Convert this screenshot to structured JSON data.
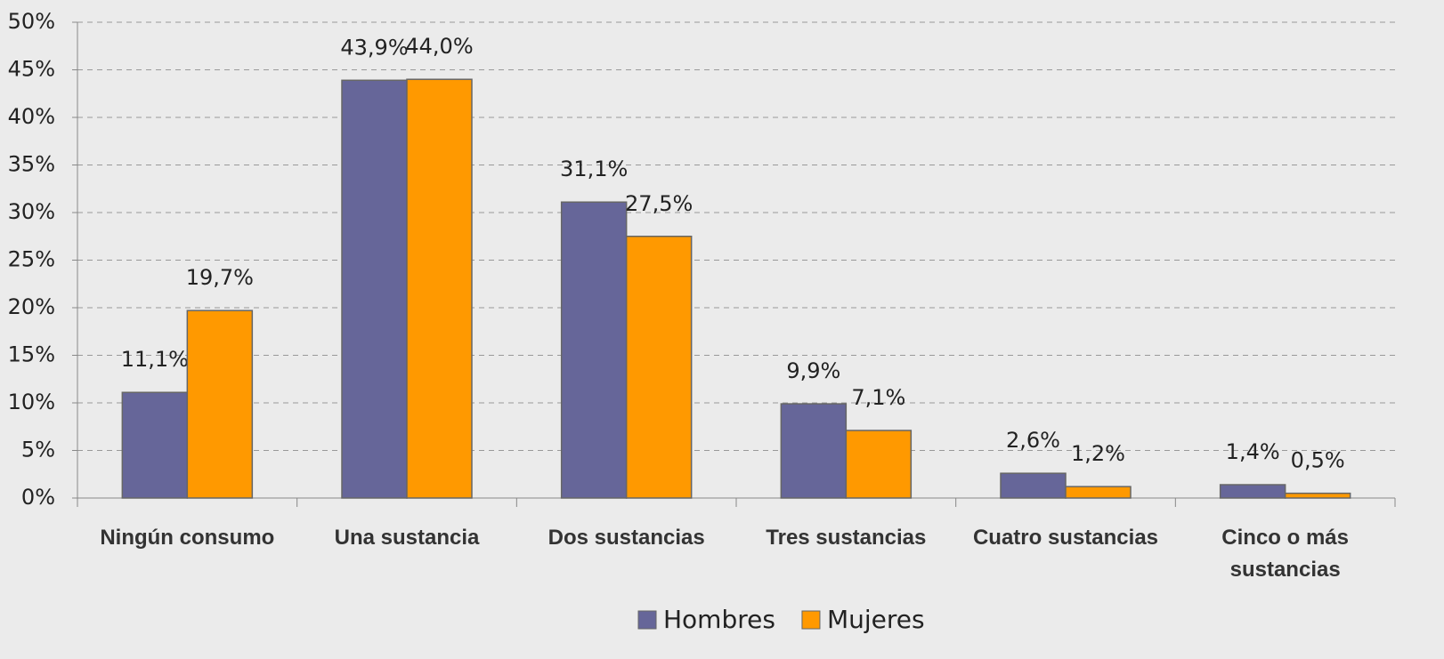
{
  "chart_data": {
    "type": "bar",
    "categories": [
      "Ningún consumo",
      "Una sustancia",
      "Dos sustancias",
      "Tres sustancias",
      "Cuatro sustancias",
      "Cinco o más sustancias"
    ],
    "series": [
      {
        "name": "Hombres",
        "color": "#666699",
        "values": [
          11.1,
          43.9,
          31.1,
          9.9,
          2.6,
          1.4
        ],
        "value_labels": [
          "11,1%",
          "43,9%",
          "31,1%",
          "9,9%",
          "2,6%",
          "1,4%"
        ]
      },
      {
        "name": "Mujeres",
        "color": "#ff9900",
        "values": [
          19.7,
          44.0,
          27.5,
          7.1,
          1.2,
          0.5
        ],
        "value_labels": [
          "19,7%",
          "44,0%",
          "27,5%",
          "7,1%",
          "1,2%",
          "0,5%"
        ]
      }
    ],
    "ylim": [
      0,
      50
    ],
    "yticks": [
      {
        "value": 0,
        "label": "0%"
      },
      {
        "value": 5,
        "label": "5%"
      },
      {
        "value": 10,
        "label": "10%"
      },
      {
        "value": 15,
        "label": "15%"
      },
      {
        "value": 20,
        "label": "20%"
      },
      {
        "value": 25,
        "label": "25%"
      },
      {
        "value": 30,
        "label": "30%"
      },
      {
        "value": 35,
        "label": "35%"
      },
      {
        "value": 40,
        "label": "40%"
      },
      {
        "value": 45,
        "label": "45%"
      },
      {
        "value": 50,
        "label": "50%"
      }
    ],
    "grid": true,
    "legend": "bottom"
  }
}
